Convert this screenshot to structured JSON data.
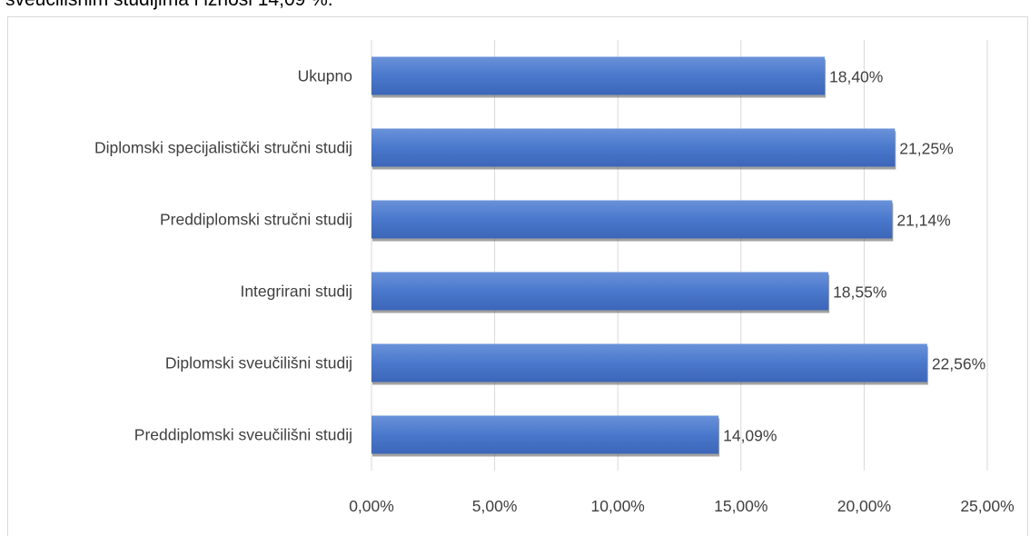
{
  "document": {
    "visible_text": "sveučilišnim studijima i iznosi 14,09 %."
  },
  "chart_data": {
    "type": "bar",
    "orientation": "horizontal",
    "categories": [
      "Ukupno",
      "Diplomski specijalistički stručni studij",
      "Preddiplomski stručni studij",
      "Integrirani studij",
      "Diplomski sveučilišni studij",
      "Preddiplomski sveučilišni studij"
    ],
    "values": [
      18.4,
      21.25,
      21.14,
      18.55,
      22.56,
      14.09
    ],
    "data_labels": [
      "18,40%",
      "21,25%",
      "21,14%",
      "18,55%",
      "22,56%",
      "14,09%"
    ],
    "xlim": [
      0,
      25
    ],
    "xticks": [
      0,
      5,
      10,
      15,
      20,
      25
    ],
    "xtick_labels": [
      "0,00%",
      "5,00%",
      "10,00%",
      "15,00%",
      "20,00%",
      "25,00%"
    ],
    "grid": true,
    "bar_color": "#4472c4",
    "bar_color_light": "#5b86d6",
    "grid_color": "#d9d9d9",
    "label_color": "#404040"
  }
}
